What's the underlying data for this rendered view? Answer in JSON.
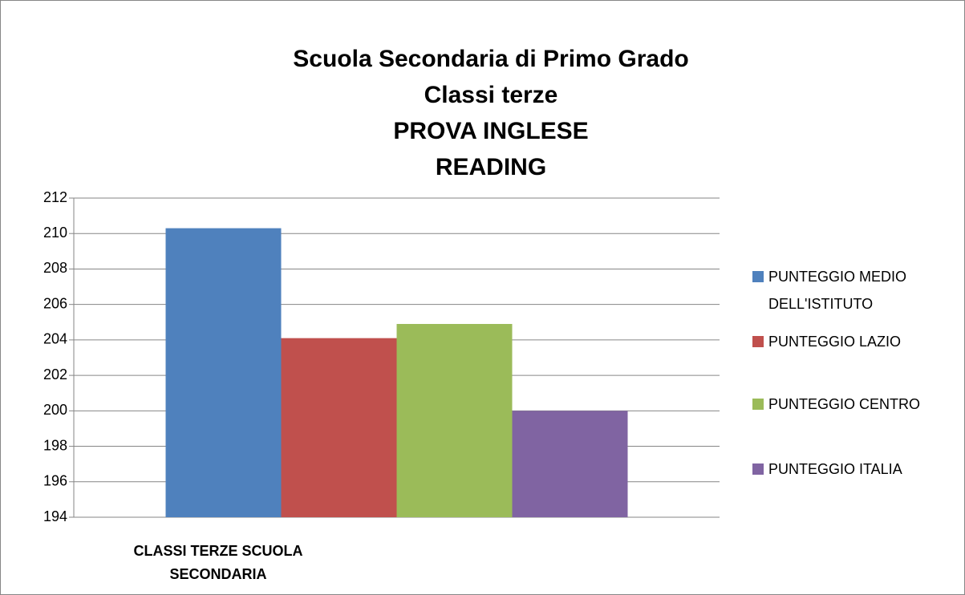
{
  "chart_data": {
    "type": "bar",
    "title": [
      "Scuola Secondaria di Primo Grado",
      "Classi terze",
      "PROVA INGLESE",
      "READING"
    ],
    "categories": [
      "CLASSI TERZE SCUOLA SECONDARIA"
    ],
    "series": [
      {
        "name": "PUNTEGGIO MEDIO DELL'ISTITUTO",
        "color": "#4f81bd",
        "values": [
          210.3
        ]
      },
      {
        "name": "PUNTEGGIO LAZIO",
        "color": "#c0504d",
        "values": [
          204.1
        ]
      },
      {
        "name": "PUNTEGGIO CENTRO",
        "color": "#9bbb59",
        "values": [
          204.9
        ]
      },
      {
        "name": "PUNTEGGIO ITALIA",
        "color": "#8064a2",
        "values": [
          200.0
        ]
      }
    ],
    "ylim": [
      194,
      212
    ],
    "yticks": [
      194,
      196,
      198,
      200,
      202,
      204,
      206,
      208,
      210,
      212
    ],
    "grid": true,
    "legend": "right"
  }
}
